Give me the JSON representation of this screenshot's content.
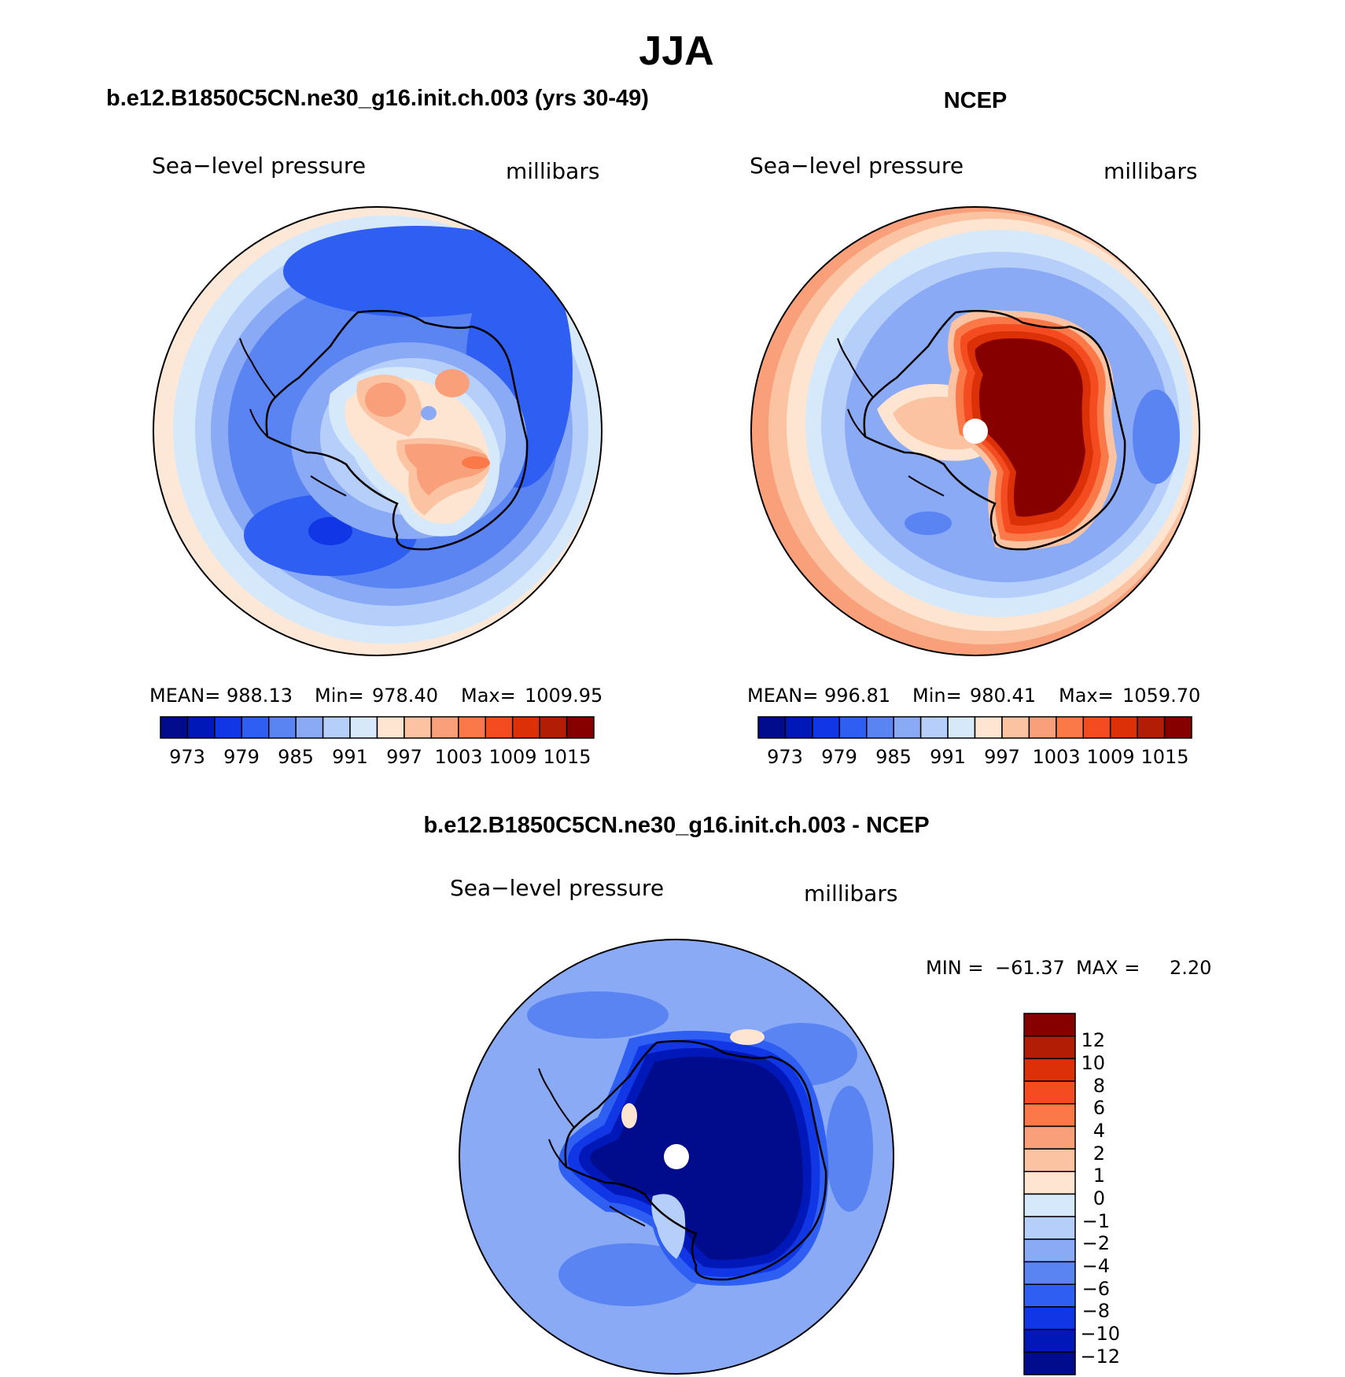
{
  "figure": {
    "title": "JJA"
  },
  "colors": {
    "ocean_far": "#fde7d7",
    "blue_0": "#d6e9fb",
    "blue_1": "#b6cffa",
    "blue_2": "#8aaaf6",
    "blue_3": "#5a84f2",
    "blue_4": "#2e5ff2",
    "blue_5": "#1136e6",
    "blue_6": "#0018b8",
    "blue_7": "#000c8c",
    "red_0": "#fde5d2",
    "red_1": "#fbc3a2",
    "red_2": "#f9a07a",
    "red_3": "#fb7848",
    "red_4": "#f44b20",
    "red_5": "#dc3008",
    "red_6": "#b21d06",
    "red_7": "#860000"
  },
  "panels": [
    {
      "heading": "b.e12.B1850C5CN.ne30_g16.init.ch.003 (yrs 30-49)",
      "variable": "Sea−level pressure",
      "units": "millibars",
      "stats": {
        "mean_label": "MEAN=",
        "mean": "988.13",
        "min_label": "Min=",
        "min": "978.40",
        "max_label": "Max=",
        "max": "1009.95"
      },
      "colorbar_ticks": [
        "973",
        "979",
        "985",
        "991",
        "997",
        "1003",
        "1009",
        "1015"
      ]
    },
    {
      "heading": "NCEP",
      "variable": "Sea−level pressure",
      "units": "millibars",
      "stats": {
        "mean_label": "MEAN=",
        "mean": "996.81",
        "min_label": "Min=",
        "min": "980.41",
        "max_label": "Max=",
        "max": "1059.70"
      },
      "colorbar_ticks": [
        "973",
        "979",
        "985",
        "991",
        "997",
        "1003",
        "1009",
        "1015"
      ]
    },
    {
      "heading": "b.e12.B1850C5CN.ne30_g16.init.ch.003 - NCEP",
      "variable": "Sea−level pressure",
      "units": "millibars",
      "stats": {
        "min_label": "MIN =",
        "min": "−61.37",
        "max_label": "MAX =",
        "max": "2.20"
      },
      "colorbar_ticks": [
        "12",
        "10",
        "8",
        "6",
        "4",
        "2",
        "1",
        "0",
        "−1",
        "−2",
        "−4",
        "−6",
        "−8",
        "−10",
        "−12"
      ]
    }
  ],
  "colorbar_levels": {
    "absolute": [
      973,
      976,
      979,
      982,
      985,
      988,
      991,
      994,
      997,
      1000,
      1003,
      1006,
      1009,
      1012,
      1015
    ],
    "difference": [
      12,
      10,
      8,
      6,
      4,
      2,
      1,
      0,
      -1,
      -2,
      -4,
      -6,
      -8,
      -10,
      -12
    ]
  }
}
